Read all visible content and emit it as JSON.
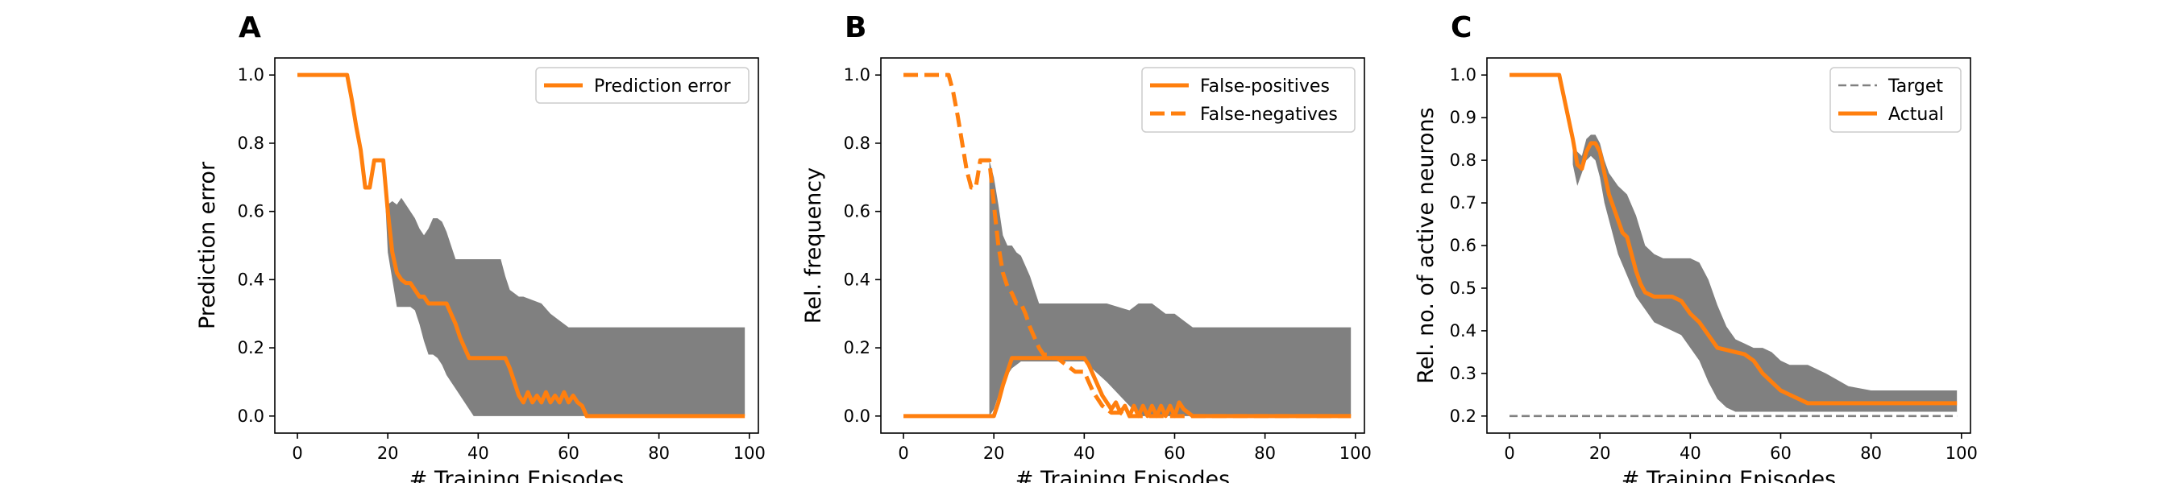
{
  "chart_data": [
    {
      "type": "line",
      "panel_label": "A",
      "xlabel": "# Training Episodes",
      "ylabel": "Prediction error",
      "xlim": [
        -5,
        102
      ],
      "ylim": [
        -0.05,
        1.05
      ],
      "xticks": [
        0,
        20,
        40,
        60,
        80,
        100
      ],
      "yticks": [
        0.0,
        0.2,
        0.4,
        0.6,
        0.8,
        1.0
      ],
      "ytick_labels": [
        "0.0",
        "0.2",
        "0.4",
        "0.6",
        "0.8",
        "1.0"
      ],
      "legend_position": "top-right",
      "band": {
        "color": "#808080",
        "x": [
          15,
          16,
          17,
          18,
          19,
          20,
          21,
          22,
          23,
          24,
          25,
          26,
          27,
          28,
          29,
          30,
          31,
          32,
          33,
          34,
          35,
          36,
          37,
          38,
          39,
          40,
          41,
          42,
          43,
          44,
          45,
          46,
          47,
          48,
          49,
          50,
          52,
          54,
          56,
          58,
          60,
          62,
          64,
          66,
          80,
          99
        ],
        "upper": [
          0.67,
          0.67,
          0.75,
          0.75,
          0.75,
          0.62,
          0.63,
          0.62,
          0.64,
          0.62,
          0.6,
          0.58,
          0.55,
          0.53,
          0.55,
          0.58,
          0.58,
          0.57,
          0.54,
          0.5,
          0.46,
          0.46,
          0.46,
          0.46,
          0.46,
          0.46,
          0.46,
          0.46,
          0.46,
          0.46,
          0.46,
          0.41,
          0.37,
          0.36,
          0.35,
          0.35,
          0.34,
          0.33,
          0.3,
          0.28,
          0.26,
          0.26,
          0.26,
          0.26,
          0.26,
          0.26
        ],
        "lower": [
          0.67,
          0.67,
          0.75,
          0.75,
          0.75,
          0.48,
          0.4,
          0.32,
          0.32,
          0.32,
          0.32,
          0.31,
          0.27,
          0.22,
          0.18,
          0.18,
          0.17,
          0.15,
          0.12,
          0.1,
          0.08,
          0.06,
          0.04,
          0.02,
          0.0,
          0.0,
          0.0,
          0.0,
          0.0,
          0.0,
          0.0,
          0.0,
          0.0,
          0.0,
          0.0,
          0.0,
          0.0,
          0.0,
          0.0,
          0.0,
          0.0,
          0.0,
          0.0,
          0.0,
          0.0,
          0.0
        ]
      },
      "series": [
        {
          "name": "Prediction error",
          "style": "solid",
          "color": "#ff7f0e",
          "x": [
            0,
            11,
            12,
            13,
            14,
            15,
            16,
            17,
            18,
            19,
            20,
            21,
            22,
            23,
            24,
            25,
            26,
            27,
            28,
            29,
            30,
            31,
            32,
            33,
            34,
            35,
            36,
            37,
            38,
            39,
            40,
            41,
            42,
            43,
            44,
            45,
            46,
            47,
            48,
            49,
            50,
            51,
            52,
            53,
            54,
            55,
            56,
            57,
            58,
            59,
            60,
            61,
            62,
            63,
            64,
            65,
            99
          ],
          "y": [
            1.0,
            1.0,
            0.93,
            0.85,
            0.78,
            0.67,
            0.67,
            0.75,
            0.75,
            0.75,
            0.6,
            0.48,
            0.42,
            0.4,
            0.39,
            0.39,
            0.37,
            0.35,
            0.35,
            0.33,
            0.33,
            0.33,
            0.33,
            0.33,
            0.3,
            0.27,
            0.23,
            0.2,
            0.17,
            0.17,
            0.17,
            0.17,
            0.17,
            0.17,
            0.17,
            0.17,
            0.17,
            0.14,
            0.1,
            0.06,
            0.04,
            0.07,
            0.04,
            0.06,
            0.04,
            0.07,
            0.04,
            0.06,
            0.04,
            0.07,
            0.04,
            0.06,
            0.04,
            0.03,
            0.0,
            0.0,
            0.0
          ]
        }
      ]
    },
    {
      "type": "line",
      "panel_label": "B",
      "xlabel": "# Training Episodes",
      "ylabel": "Rel. frequency",
      "xlim": [
        -5,
        102
      ],
      "ylim": [
        -0.05,
        1.05
      ],
      "xticks": [
        0,
        20,
        40,
        60,
        80,
        100
      ],
      "yticks": [
        0.0,
        0.2,
        0.4,
        0.6,
        0.8,
        1.0
      ],
      "ytick_labels": [
        "0.0",
        "0.2",
        "0.4",
        "0.6",
        "0.8",
        "1.0"
      ],
      "legend_position": "top-right",
      "band": {
        "color": "#808080",
        "x": [
          19,
          20,
          21,
          22,
          23,
          24,
          25,
          26,
          27,
          28,
          29,
          30,
          35,
          40,
          45,
          50,
          52,
          55,
          58,
          60,
          62,
          64,
          66,
          80,
          99
        ],
        "upper": [
          0.75,
          0.7,
          0.62,
          0.53,
          0.5,
          0.5,
          0.48,
          0.47,
          0.44,
          0.41,
          0.37,
          0.33,
          0.33,
          0.33,
          0.33,
          0.31,
          0.33,
          0.33,
          0.3,
          0.3,
          0.28,
          0.26,
          0.26,
          0.26,
          0.26
        ],
        "lower": [
          0.0,
          0.02,
          0.06,
          0.1,
          0.12,
          0.14,
          0.15,
          0.16,
          0.16,
          0.16,
          0.16,
          0.16,
          0.16,
          0.16,
          0.1,
          0.03,
          0.0,
          0.0,
          0.0,
          0.0,
          0.0,
          0.0,
          0.0,
          0.0,
          0.0
        ]
      },
      "series": [
        {
          "name": "False-positives",
          "style": "solid",
          "color": "#ff7f0e",
          "x": [
            0,
            20,
            21,
            22,
            23,
            24,
            25,
            26,
            39,
            40,
            41,
            42,
            43,
            44,
            45,
            46,
            47,
            48,
            49,
            50,
            51,
            52,
            53,
            54,
            55,
            56,
            57,
            58,
            59,
            60,
            61,
            62,
            63,
            64,
            99
          ],
          "y": [
            0.0,
            0.0,
            0.04,
            0.09,
            0.13,
            0.17,
            0.17,
            0.17,
            0.17,
            0.17,
            0.15,
            0.12,
            0.09,
            0.06,
            0.04,
            0.02,
            0.04,
            0.01,
            0.03,
            0.0,
            0.03,
            0.0,
            0.03,
            0.0,
            0.03,
            0.0,
            0.03,
            0.0,
            0.03,
            0.0,
            0.04,
            0.02,
            0.01,
            0.0,
            0.0
          ]
        },
        {
          "name": "False-negatives",
          "style": "dashed",
          "color": "#ff7f0e",
          "x": [
            0,
            10,
            11,
            12,
            13,
            14,
            15,
            16,
            17,
            18,
            19,
            20,
            21,
            22,
            23,
            24,
            25,
            26,
            27,
            28,
            29,
            30,
            31,
            32,
            33,
            34,
            35,
            36,
            37,
            38,
            39,
            40,
            41,
            42,
            43,
            44,
            45,
            46,
            47,
            48,
            49,
            50,
            51,
            52,
            99
          ],
          "y": [
            1.0,
            1.0,
            0.95,
            0.88,
            0.8,
            0.72,
            0.67,
            0.67,
            0.75,
            0.75,
            0.75,
            0.62,
            0.5,
            0.42,
            0.38,
            0.36,
            0.33,
            0.33,
            0.3,
            0.26,
            0.23,
            0.2,
            0.18,
            0.18,
            0.17,
            0.17,
            0.16,
            0.15,
            0.14,
            0.13,
            0.13,
            0.13,
            0.1,
            0.07,
            0.05,
            0.03,
            0.02,
            0.01,
            0.01,
            0.01,
            0.0,
            0.0,
            0.0,
            0.0,
            0.0
          ]
        }
      ]
    },
    {
      "type": "line",
      "panel_label": "C",
      "xlabel": "# Training Episodes",
      "ylabel": "Rel. no. of active neurons",
      "xlim": [
        -5,
        102
      ],
      "ylim": [
        0.16,
        1.04
      ],
      "xticks": [
        0,
        20,
        40,
        60,
        80,
        100
      ],
      "yticks": [
        0.2,
        0.3,
        0.4,
        0.5,
        0.6,
        0.7,
        0.8,
        0.9,
        1.0
      ],
      "ytick_labels": [
        "0.2",
        "0.3",
        "0.4",
        "0.5",
        "0.6",
        "0.7",
        "0.8",
        "0.9",
        "1.0"
      ],
      "legend_position": "top-right",
      "band": {
        "color": "#808080",
        "x": [
          14,
          15,
          16,
          17,
          18,
          19,
          20,
          21,
          22,
          24,
          26,
          28,
          30,
          32,
          34,
          36,
          38,
          40,
          42,
          44,
          46,
          48,
          50,
          52,
          54,
          56,
          58,
          60,
          62,
          64,
          66,
          70,
          75,
          80,
          85,
          90,
          95,
          99
        ],
        "upper": [
          0.83,
          0.82,
          0.81,
          0.85,
          0.86,
          0.86,
          0.84,
          0.8,
          0.77,
          0.74,
          0.72,
          0.67,
          0.6,
          0.58,
          0.57,
          0.57,
          0.57,
          0.57,
          0.56,
          0.52,
          0.46,
          0.41,
          0.38,
          0.37,
          0.36,
          0.36,
          0.35,
          0.33,
          0.32,
          0.32,
          0.32,
          0.3,
          0.27,
          0.26,
          0.26,
          0.26,
          0.26,
          0.26
        ],
        "lower": [
          0.79,
          0.74,
          0.77,
          0.8,
          0.81,
          0.8,
          0.76,
          0.7,
          0.66,
          0.58,
          0.53,
          0.48,
          0.45,
          0.42,
          0.41,
          0.4,
          0.39,
          0.36,
          0.33,
          0.28,
          0.24,
          0.22,
          0.21,
          0.21,
          0.21,
          0.21,
          0.21,
          0.21,
          0.21,
          0.21,
          0.21,
          0.21,
          0.21,
          0.21,
          0.21,
          0.21,
          0.21,
          0.21
        ]
      },
      "series": [
        {
          "name": "Target",
          "style": "dashed",
          "color": "#808080",
          "x": [
            0,
            99
          ],
          "y": [
            0.2,
            0.2
          ]
        },
        {
          "name": "Actual",
          "style": "solid",
          "color": "#ff7f0e",
          "x": [
            0,
            11,
            12,
            13,
            14,
            15,
            16,
            17,
            18,
            19,
            20,
            21,
            22,
            23,
            24,
            25,
            26,
            27,
            28,
            29,
            30,
            32,
            34,
            36,
            38,
            40,
            42,
            44,
            46,
            48,
            50,
            52,
            54,
            56,
            58,
            60,
            62,
            64,
            66,
            70,
            80,
            90,
            99
          ],
          "y": [
            1.0,
            1.0,
            0.95,
            0.9,
            0.85,
            0.79,
            0.78,
            0.82,
            0.84,
            0.84,
            0.82,
            0.77,
            0.72,
            0.69,
            0.66,
            0.63,
            0.62,
            0.58,
            0.54,
            0.51,
            0.49,
            0.48,
            0.48,
            0.48,
            0.47,
            0.44,
            0.42,
            0.39,
            0.36,
            0.355,
            0.35,
            0.345,
            0.33,
            0.3,
            0.28,
            0.26,
            0.25,
            0.24,
            0.23,
            0.23,
            0.23,
            0.23,
            0.23
          ]
        }
      ]
    }
  ]
}
